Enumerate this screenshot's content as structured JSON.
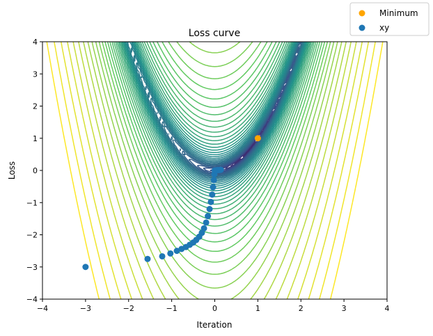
{
  "chart_data": {
    "type": "scatter",
    "title": "Loss curve",
    "xlabel": "Iteration",
    "ylabel": "Loss",
    "xlim": [
      -4,
      4
    ],
    "ylim": [
      -4,
      4
    ],
    "x_ticks": [
      -4,
      -3,
      -2,
      -1,
      0,
      1,
      2,
      3,
      4
    ],
    "y_ticks": [
      -4,
      -3,
      -2,
      -1,
      0,
      1,
      2,
      3,
      4
    ],
    "legend_position": "top-right, outside axes",
    "grid": false,
    "background": "contour plot of Rosenbrock-like function (a=1, b=100), viridis colormap",
    "series": [
      {
        "name": "Minimum",
        "color": "#ffa500",
        "points": [
          [
            1,
            1
          ]
        ]
      },
      {
        "name": "xy",
        "color": "#1f77b4",
        "points": [
          [
            -3,
            -3
          ],
          [
            -1.56,
            -2.75
          ],
          [
            -1.22,
            -2.67
          ],
          [
            -1.03,
            -2.58
          ],
          [
            -0.88,
            -2.5
          ],
          [
            -0.77,
            -2.44
          ],
          [
            -0.67,
            -2.38
          ],
          [
            -0.58,
            -2.31
          ],
          [
            -0.5,
            -2.24
          ],
          [
            -0.43,
            -2.16
          ],
          [
            -0.36,
            -2.06
          ],
          [
            -0.3,
            -1.94
          ],
          [
            -0.25,
            -1.8
          ],
          [
            -0.2,
            -1.62
          ],
          [
            -0.16,
            -1.42
          ],
          [
            -0.12,
            -1.2
          ],
          [
            -0.09,
            -0.98
          ],
          [
            -0.06,
            -0.75
          ],
          [
            -0.04,
            -0.52
          ],
          [
            -0.02,
            -0.3
          ],
          [
            -0.01,
            -0.12
          ],
          [
            0,
            0
          ],
          [
            0.03,
            0.0
          ],
          [
            0.06,
            0.01
          ],
          [
            0.1,
            0.01
          ],
          [
            0.14,
            0.02
          ]
        ]
      }
    ]
  }
}
